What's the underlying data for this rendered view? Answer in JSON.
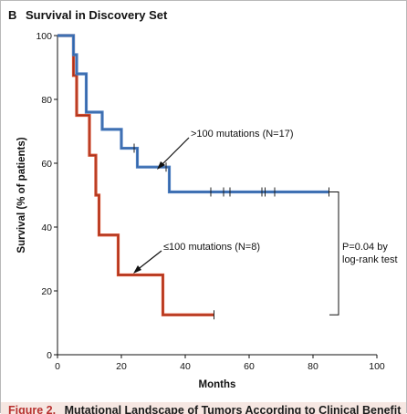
{
  "panel": {
    "letter": "B",
    "title": "Survival in Discovery Set"
  },
  "caption": {
    "label": "Figure 2.",
    "text": "Mutational Landscape of Tumors According to Clinical Benefit"
  },
  "colors": {
    "high_series": "#4a7cc0",
    "high_series_inner": "#2d5b98",
    "low_series": "#d24a2b",
    "low_series_inner": "#8f2a1c",
    "axis": "#111111"
  },
  "chart_data": {
    "type": "line",
    "xlabel": "Months",
    "ylabel": "Survival (% of patients)",
    "xlim": [
      0,
      100
    ],
    "ylim": [
      0,
      100
    ],
    "xticks": [
      0,
      20,
      40,
      60,
      80,
      100
    ],
    "yticks": [
      0,
      20,
      40,
      60,
      80,
      100
    ],
    "grid": false,
    "series": [
      {
        "name": ">100 mutations (N=17)",
        "color_key": "high_series",
        "step": [
          [
            0,
            100
          ],
          [
            5,
            100
          ],
          [
            5,
            94
          ],
          [
            6,
            94
          ],
          [
            6,
            88
          ],
          [
            9,
            88
          ],
          [
            9,
            76
          ],
          [
            14,
            76
          ],
          [
            14,
            70.6
          ],
          [
            20,
            70.6
          ],
          [
            20,
            64.7
          ],
          [
            25,
            64.7
          ],
          [
            25,
            58.8
          ],
          [
            35,
            58.8
          ],
          [
            35,
            51
          ],
          [
            85,
            51
          ]
        ],
        "censored": [
          [
            24,
            64.7
          ],
          [
            34,
            58.8
          ],
          [
            48,
            51
          ],
          [
            52,
            51
          ],
          [
            54,
            51
          ],
          [
            64,
            51
          ],
          [
            65,
            51
          ],
          [
            68,
            51
          ],
          [
            85,
            51
          ]
        ]
      },
      {
        "name": "≤100 mutations (N=8)",
        "color_key": "low_series",
        "step": [
          [
            0,
            100
          ],
          [
            5,
            100
          ],
          [
            5,
            87.5
          ],
          [
            6,
            87.5
          ],
          [
            6,
            75
          ],
          [
            10,
            75
          ],
          [
            10,
            62.5
          ],
          [
            12,
            62.5
          ],
          [
            12,
            50
          ],
          [
            13,
            50
          ],
          [
            13,
            37.5
          ],
          [
            19,
            37.5
          ],
          [
            19,
            25
          ],
          [
            33,
            25
          ],
          [
            33,
            12.5
          ],
          [
            49,
            12.5
          ]
        ],
        "censored": [
          [
            49,
            12.5
          ]
        ]
      }
    ],
    "annotations": {
      "high_label": ">100 mutations (N=17)",
      "low_label": "≤100 mutations (N=8)",
      "pvalue_line1": "P=0.04 by",
      "pvalue_line2": "log-rank test"
    }
  }
}
